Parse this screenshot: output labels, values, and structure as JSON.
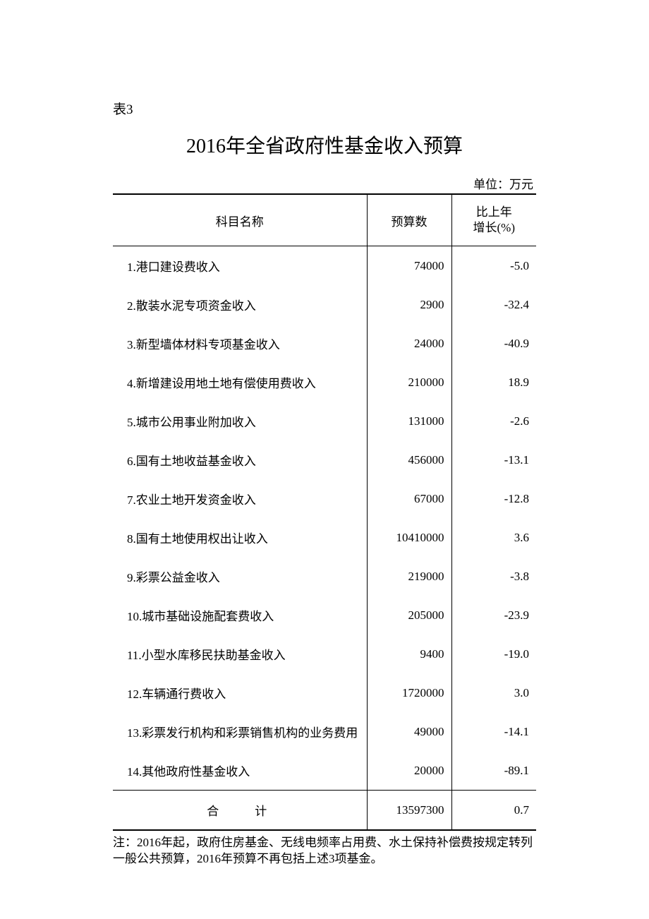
{
  "tableLabel": "表3",
  "title": "2016年全省政府性基金收入预算",
  "unit": "单位：万元",
  "columns": {
    "name": "科目名称",
    "budget": "预算数",
    "growth": "比上年\n增长(%)"
  },
  "rows": [
    {
      "name": "1.港口建设费收入",
      "budget": "74000",
      "growth": "-5.0"
    },
    {
      "name": "2.散装水泥专项资金收入",
      "budget": "2900",
      "growth": "-32.4"
    },
    {
      "name": "3.新型墙体材料专项基金收入",
      "budget": "24000",
      "growth": "-40.9"
    },
    {
      "name": "4.新增建设用地土地有偿使用费收入",
      "budget": "210000",
      "growth": "18.9"
    },
    {
      "name": "5.城市公用事业附加收入",
      "budget": "131000",
      "growth": "-2.6"
    },
    {
      "name": "6.国有土地收益基金收入",
      "budget": "456000",
      "growth": "-13.1"
    },
    {
      "name": "7.农业土地开发资金收入",
      "budget": "67000",
      "growth": "-12.8"
    },
    {
      "name": "8.国有土地使用权出让收入",
      "budget": "10410000",
      "growth": "3.6"
    },
    {
      "name": "9.彩票公益金收入",
      "budget": "219000",
      "growth": "-3.8"
    },
    {
      "name": "10.城市基础设施配套费收入",
      "budget": "205000",
      "growth": "-23.9"
    },
    {
      "name": "11.小型水库移民扶助基金收入",
      "budget": "9400",
      "growth": "-19.0"
    },
    {
      "name": "12.车辆通行费收入",
      "budget": "1720000",
      "growth": "3.0"
    },
    {
      "name": "13.彩票发行机构和彩票销售机构的业务费用",
      "budget": "49000",
      "growth": "-14.1"
    },
    {
      "name": "14.其他政府性基金收入",
      "budget": "20000",
      "growth": "-89.1"
    }
  ],
  "total": {
    "name": "合计",
    "budget": "13597300",
    "growth": "0.7"
  },
  "footnote": "注：2016年起，政府住房基金、无线电频率占用费、水土保持补偿费按规定转列一般公共预算，2016年预算不再包括上述3项基金。",
  "style": {
    "background_color": "#ffffff",
    "text_color": "#000000",
    "border_color": "#000000",
    "title_fontsize": 28,
    "body_fontsize": 17,
    "label_fontsize": 19,
    "font_family": "SimSun"
  }
}
